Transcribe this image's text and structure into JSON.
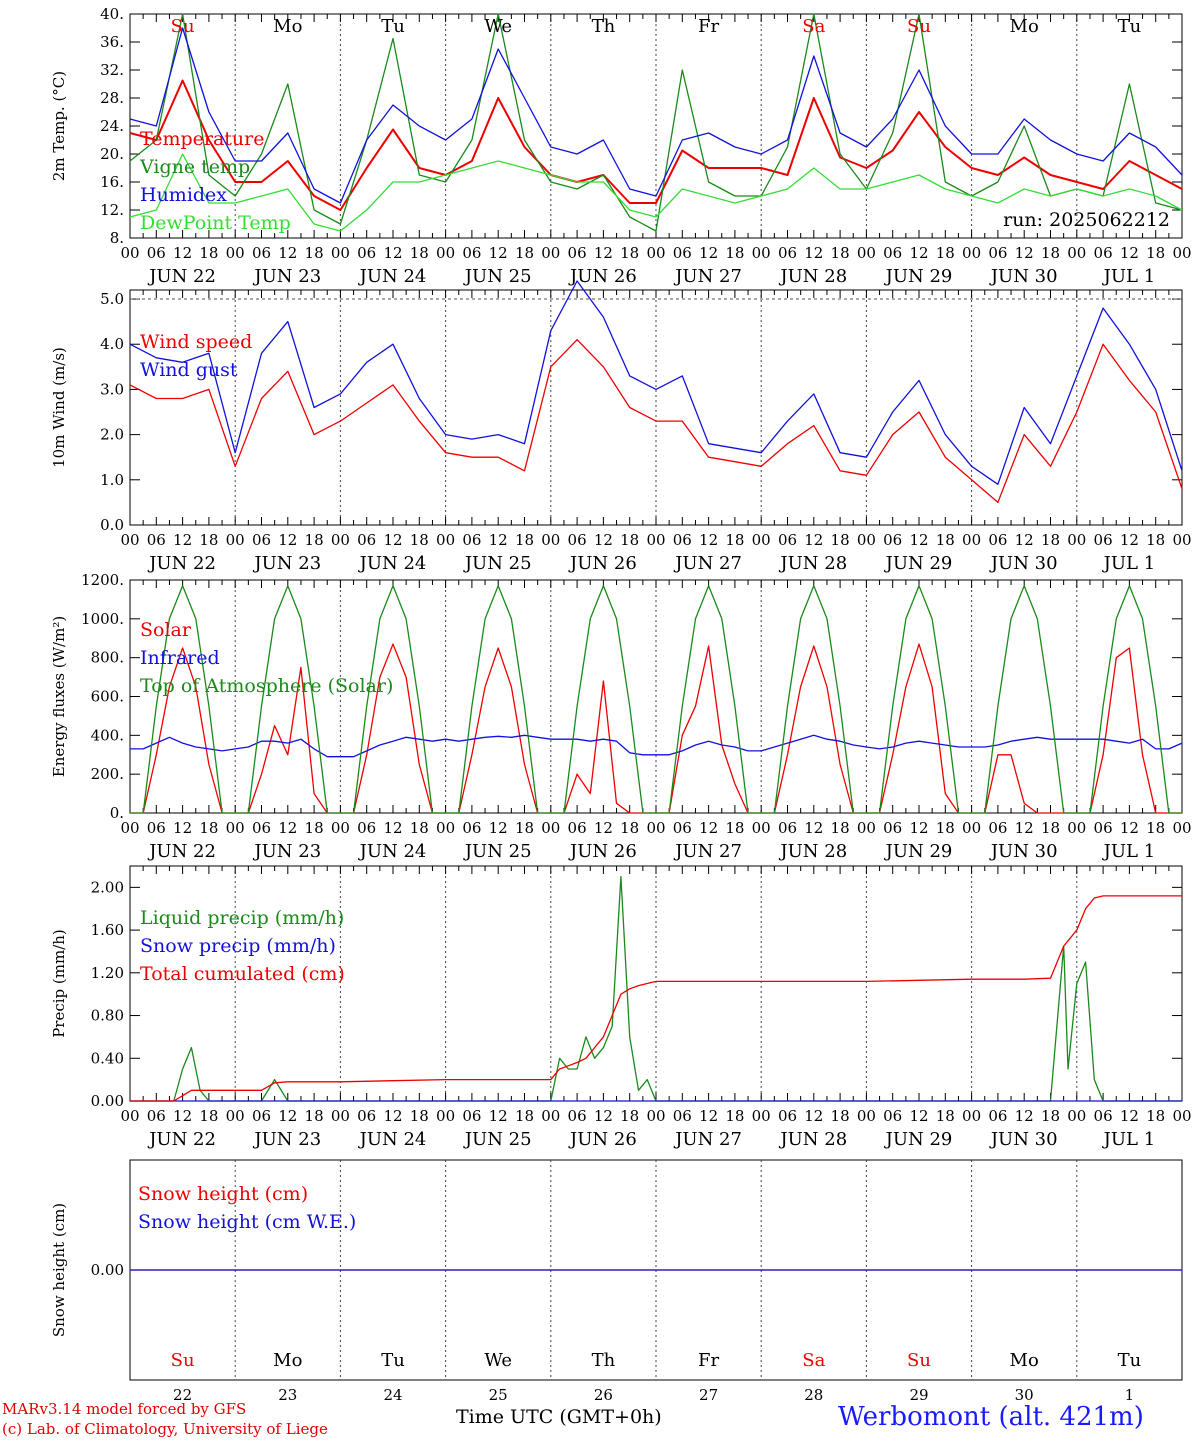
{
  "footer": {
    "model": "MARv3.14 model forced by GFS",
    "lab": "(c) Lab. of Climatology, University of Liege",
    "xaxis": "Time UTC (GMT+0h)",
    "station": "Werbomont (alt. 421m)"
  },
  "colors": {
    "red": "#ee0000",
    "green": "#1a8a1a",
    "blue": "#1111dd",
    "lightgreen": "#33dd33"
  },
  "days": {
    "dow": [
      "Su",
      "Mo",
      "Tu",
      "We",
      "Th",
      "Fr",
      "Sa",
      "Su",
      "Mo",
      "Tu"
    ],
    "dow_red": [
      true,
      false,
      false,
      false,
      false,
      false,
      true,
      true,
      false,
      false
    ],
    "dates": [
      "JUN 22",
      "JUN 23",
      "JUN 24",
      "JUN 25",
      "JUN 26",
      "JUN 27",
      "JUN 28",
      "JUN 29",
      "JUN 30",
      "JUL  1"
    ],
    "day_numbers": [
      "22",
      "23",
      "24",
      "25",
      "26",
      "27",
      "28",
      "29",
      "30",
      "1"
    ],
    "hour_ticks": [
      "00",
      "06",
      "12",
      "18"
    ],
    "final_hour": "00"
  },
  "chart_data": [
    {
      "type": "line",
      "ylabel": "2m Temp. (°C)",
      "ylim": [
        8,
        40
      ],
      "yticks": [
        "8.",
        "12.",
        "16.",
        "20.",
        "24.",
        "28.",
        "32.",
        "36.",
        "40."
      ],
      "annotation": "run: 2025062212",
      "x_hours": [
        0,
        6,
        12,
        18,
        24,
        30,
        36,
        42,
        48,
        54,
        60,
        66,
        72,
        78,
        84,
        90,
        96,
        102,
        108,
        114,
        120,
        126,
        132,
        138,
        144,
        150,
        156,
        162,
        168,
        174,
        180,
        186,
        192,
        198,
        204,
        210,
        216,
        222,
        228,
        234,
        240
      ],
      "series": [
        {
          "name": "Temperature",
          "color": "red",
          "values": [
            23,
            22,
            30.5,
            22,
            16,
            16,
            19,
            14,
            12,
            18,
            23.5,
            18,
            17,
            19,
            28,
            21,
            17,
            16,
            17,
            13,
            13,
            20.5,
            18,
            18,
            18,
            17,
            28,
            19.5,
            18,
            20.5,
            26,
            21,
            18,
            17,
            19.5,
            17,
            16,
            15,
            19,
            17,
            15
          ]
        },
        {
          "name": "Vigne temp",
          "color": "green",
          "values": [
            19,
            22,
            40,
            17,
            14,
            20,
            30,
            12,
            10,
            22,
            36.5,
            17,
            16,
            22,
            40,
            22,
            16,
            15,
            17,
            11,
            9,
            32,
            16,
            14,
            14,
            21,
            40,
            20,
            15,
            23,
            40,
            16,
            14,
            16,
            24,
            14,
            15,
            14,
            30,
            13,
            12
          ]
        },
        {
          "name": "Humidex",
          "color": "blue",
          "values": [
            25,
            24,
            38,
            26,
            19,
            19,
            23,
            15,
            13,
            22,
            27,
            24,
            22,
            25,
            35,
            28,
            21,
            20,
            22,
            15,
            14,
            22,
            23,
            21,
            20,
            22,
            34,
            23,
            21,
            25,
            32,
            24,
            20,
            20,
            25,
            22,
            20,
            19,
            23,
            21,
            17
          ]
        },
        {
          "name": "DewPoint Temp",
          "color": "lightgreen",
          "values": [
            11,
            12,
            20,
            13,
            13,
            14,
            15,
            10,
            9,
            12,
            16,
            16,
            17,
            18,
            19,
            18,
            17,
            16,
            16,
            12,
            11,
            15,
            14,
            13,
            14,
            15,
            18,
            15,
            15,
            16,
            17,
            15,
            14,
            13,
            15,
            14,
            15,
            14,
            15,
            14,
            12
          ]
        }
      ]
    },
    {
      "type": "line",
      "ylabel": "10m Wind (m/s)",
      "ylim": [
        0,
        5.2
      ],
      "yticks": [
        "0.0",
        "1.0",
        "2.0",
        "3.0",
        "4.0",
        "5.0"
      ],
      "x_hours": [
        0,
        6,
        12,
        18,
        24,
        30,
        36,
        42,
        48,
        54,
        60,
        66,
        72,
        78,
        84,
        90,
        96,
        102,
        108,
        114,
        120,
        126,
        132,
        138,
        144,
        150,
        156,
        162,
        168,
        174,
        180,
        186,
        192,
        198,
        204,
        210,
        216,
        222,
        228,
        234,
        240
      ],
      "series": [
        {
          "name": "Wind speed",
          "color": "red",
          "values": [
            3.1,
            2.8,
            2.8,
            3.0,
            1.3,
            2.8,
            3.4,
            2.0,
            2.3,
            2.7,
            3.1,
            2.3,
            1.6,
            1.5,
            1.5,
            1.2,
            3.5,
            4.1,
            3.5,
            2.6,
            2.3,
            2.3,
            1.5,
            1.4,
            1.3,
            1.8,
            2.2,
            1.2,
            1.1,
            2.0,
            2.5,
            1.5,
            1.0,
            0.5,
            2.0,
            1.3,
            2.5,
            4.0,
            3.2,
            2.5,
            0.8
          ]
        },
        {
          "name": "Wind gust",
          "color": "blue",
          "values": [
            4.0,
            3.7,
            3.6,
            3.8,
            1.6,
            3.8,
            4.5,
            2.6,
            2.9,
            3.6,
            4.0,
            2.8,
            2.0,
            1.9,
            2.0,
            1.8,
            4.3,
            5.4,
            4.6,
            3.3,
            3.0,
            3.3,
            1.8,
            1.7,
            1.6,
            2.3,
            2.9,
            1.6,
            1.5,
            2.5,
            3.2,
            2.0,
            1.3,
            0.9,
            2.6,
            1.8,
            3.3,
            4.8,
            4.0,
            3.0,
            1.2
          ]
        }
      ]
    },
    {
      "type": "line",
      "ylabel": "Energy fluxes (W/m²)",
      "ylim": [
        0,
        1200
      ],
      "yticks": [
        "0.",
        "200.",
        "400.",
        "600.",
        "800.",
        "1000.",
        "1200."
      ],
      "x_hours": [
        0,
        3,
        6,
        9,
        12,
        15,
        18,
        21,
        24,
        27,
        30,
        33,
        36,
        39,
        42,
        45,
        48,
        51,
        54,
        57,
        60,
        63,
        66,
        69,
        72,
        75,
        78,
        81,
        84,
        87,
        90,
        93,
        96,
        99,
        102,
        105,
        108,
        111,
        114,
        117,
        120,
        123,
        126,
        129,
        132,
        135,
        138,
        141,
        144,
        147,
        150,
        153,
        156,
        159,
        162,
        165,
        168,
        171,
        174,
        177,
        180,
        183,
        186,
        189,
        192,
        195,
        198,
        201,
        204,
        207,
        210,
        213,
        216,
        219,
        222,
        225,
        228,
        231,
        234,
        237,
        240
      ],
      "series": [
        {
          "name": "Solar",
          "color": "red",
          "values": [
            0,
            0,
            300,
            650,
            850,
            650,
            250,
            0,
            0,
            0,
            200,
            450,
            300,
            750,
            100,
            0,
            0,
            0,
            300,
            700,
            870,
            700,
            250,
            0,
            0,
            0,
            300,
            650,
            850,
            650,
            250,
            0,
            0,
            0,
            200,
            100,
            680,
            50,
            0,
            0,
            0,
            0,
            400,
            550,
            860,
            350,
            150,
            0,
            0,
            0,
            300,
            650,
            860,
            650,
            250,
            0,
            0,
            0,
            300,
            650,
            870,
            650,
            100,
            0,
            0,
            0,
            300,
            300,
            50,
            0,
            0,
            0,
            0,
            0,
            300,
            800,
            850,
            300,
            0,
            0,
            0
          ]
        },
        {
          "name": "Infrared",
          "color": "blue",
          "values": [
            330,
            330,
            360,
            390,
            360,
            340,
            330,
            320,
            330,
            340,
            370,
            370,
            360,
            380,
            330,
            290,
            290,
            290,
            320,
            350,
            370,
            390,
            380,
            370,
            380,
            370,
            380,
            390,
            395,
            390,
            400,
            390,
            380,
            380,
            380,
            370,
            380,
            370,
            310,
            300,
            300,
            300,
            320,
            350,
            370,
            350,
            340,
            320,
            320,
            340,
            360,
            380,
            400,
            380,
            370,
            350,
            340,
            330,
            340,
            360,
            370,
            360,
            350,
            340,
            340,
            340,
            350,
            370,
            380,
            390,
            380,
            380,
            380,
            380,
            380,
            370,
            360,
            380,
            330,
            330,
            360
          ]
        },
        {
          "name": "Top of Atmosphere (Solar)",
          "color": "green",
          "values": [
            0,
            0,
            550,
            1000,
            1170,
            1000,
            550,
            0,
            0,
            0,
            550,
            1000,
            1170,
            1000,
            550,
            0,
            0,
            0,
            550,
            1000,
            1170,
            1000,
            550,
            0,
            0,
            0,
            550,
            1000,
            1170,
            1000,
            550,
            0,
            0,
            0,
            550,
            1000,
            1170,
            1000,
            550,
            0,
            0,
            0,
            550,
            1000,
            1170,
            1000,
            550,
            0,
            0,
            0,
            550,
            1000,
            1170,
            1000,
            550,
            0,
            0,
            0,
            550,
            1000,
            1170,
            1000,
            550,
            0,
            0,
            0,
            550,
            1000,
            1170,
            1000,
            550,
            0,
            0,
            0,
            550,
            1000,
            1170,
            1000,
            550,
            0,
            0
          ]
        }
      ]
    },
    {
      "type": "line",
      "ylabel": "Precip (mm/h)",
      "ylim": [
        0,
        2.2
      ],
      "yticks": [
        "0.00",
        "0.40",
        "0.80",
        "1.20",
        "1.60",
        "2.00"
      ],
      "x_hours": [
        0,
        6,
        10,
        12,
        14,
        16,
        18,
        24,
        30,
        33,
        36,
        42,
        48,
        60,
        72,
        84,
        96,
        98,
        100,
        102,
        104,
        106,
        108,
        110,
        112,
        114,
        116,
        118,
        120,
        132,
        144,
        156,
        168,
        180,
        192,
        204,
        210,
        213,
        214,
        216,
        218,
        220,
        222,
        228,
        234,
        240
      ],
      "series": [
        {
          "name": "Liquid precip (mm/h)",
          "color": "green",
          "values": [
            0,
            0,
            0,
            0.3,
            0.5,
            0.1,
            0,
            0,
            0,
            0.2,
            0,
            0,
            0,
            0,
            0,
            0,
            0,
            0.4,
            0.3,
            0.3,
            0.6,
            0.4,
            0.5,
            0.7,
            2.1,
            0.6,
            0.1,
            0.2,
            0,
            0,
            0,
            0,
            0,
            0,
            0,
            0,
            0,
            1.45,
            0.3,
            1.1,
            1.3,
            0.2,
            0,
            0,
            0,
            0
          ]
        },
        {
          "name": "Snow precip (mm/h)",
          "color": "blue",
          "values": [
            0,
            0,
            0,
            0,
            0,
            0,
            0,
            0,
            0,
            0,
            0,
            0,
            0,
            0,
            0,
            0,
            0,
            0,
            0,
            0,
            0,
            0,
            0,
            0,
            0,
            0,
            0,
            0,
            0,
            0,
            0,
            0,
            0,
            0,
            0,
            0,
            0,
            0,
            0,
            0,
            0,
            0,
            0,
            0,
            0,
            0
          ]
        },
        {
          "name": "Total cumulated (cm)",
          "color": "red",
          "values": [
            0,
            0,
            0,
            0.05,
            0.1,
            0.1,
            0.1,
            0.1,
            0.1,
            0.17,
            0.18,
            0.18,
            0.18,
            0.19,
            0.2,
            0.2,
            0.2,
            0.3,
            0.33,
            0.36,
            0.4,
            0.5,
            0.6,
            0.8,
            1.0,
            1.05,
            1.08,
            1.1,
            1.12,
            1.12,
            1.12,
            1.12,
            1.12,
            1.13,
            1.14,
            1.14,
            1.15,
            1.45,
            1.5,
            1.6,
            1.8,
            1.9,
            1.92,
            1.92,
            1.92,
            1.92
          ]
        }
      ]
    },
    {
      "type": "line",
      "ylabel": "Snow height (cm)",
      "ylim": [
        -1,
        1
      ],
      "yticks": [
        "0.00"
      ],
      "x_hours": [
        0,
        240
      ],
      "series": [
        {
          "name": "Snow height (cm)",
          "color": "red",
          "values": [
            0,
            0
          ]
        },
        {
          "name": "Snow height (cm W.E.)",
          "color": "blue",
          "values": [
            0,
            0
          ]
        }
      ]
    }
  ]
}
